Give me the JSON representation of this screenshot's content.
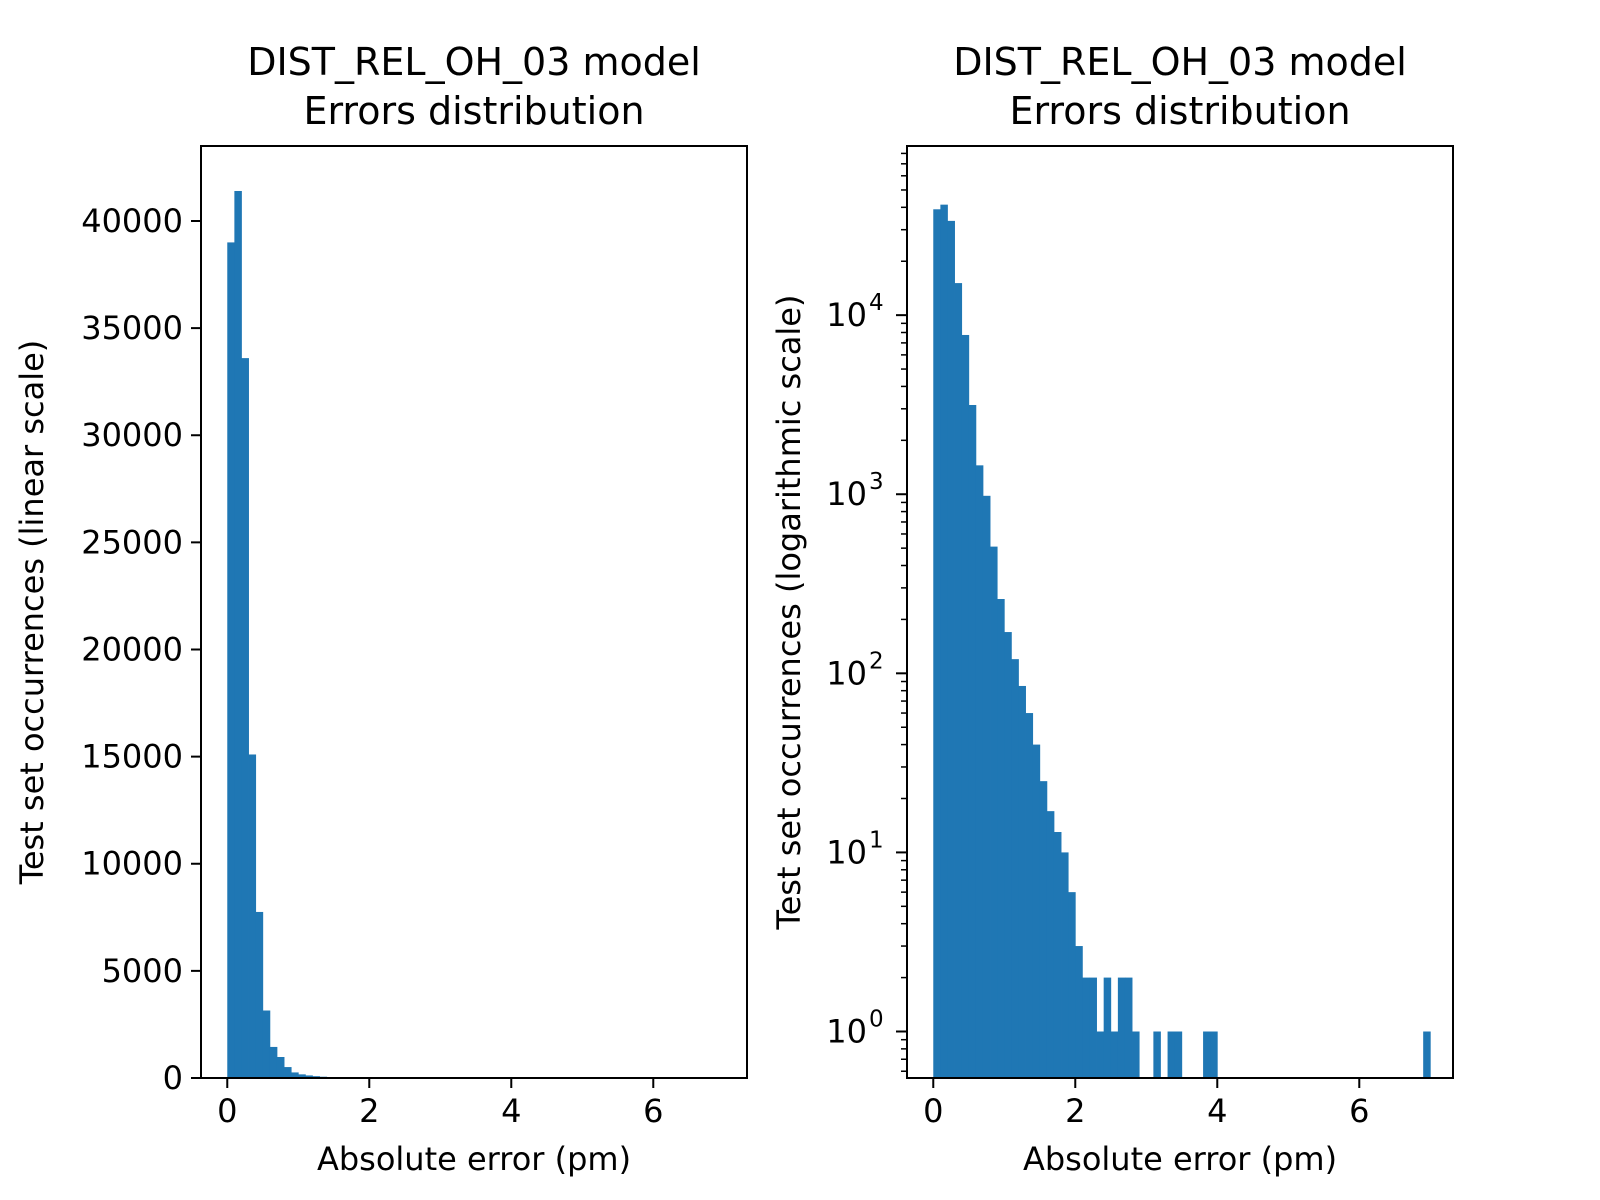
{
  "colors": {
    "bar": "#1f77b4",
    "axis": "#000000",
    "background": "#ffffff"
  },
  "chart_data": [
    {
      "type": "bar",
      "title_line1": "DIST_REL_OH_03 model",
      "title_line2": "Errors distribution",
      "xlabel": "Absolute error (pm)",
      "ylabel": "Test set occurrences (linear scale)",
      "yscale": "linear",
      "xlim": [
        -0.37,
        7.32
      ],
      "ylim": [
        0,
        43500
      ],
      "bin_width": 0.1,
      "bin_start": 0.0,
      "values": [
        39000,
        41400,
        33600,
        15100,
        7750,
        3150,
        1450,
        980,
        510,
        260,
        170,
        120,
        85,
        60,
        40,
        25,
        17,
        13,
        10,
        6,
        3,
        2,
        2,
        1,
        2,
        1,
        2,
        2,
        1,
        0,
        0,
        1,
        0,
        1,
        1,
        0,
        0,
        0,
        1,
        1,
        0,
        0,
        0,
        0,
        0,
        0,
        0,
        0,
        0,
        0,
        0,
        0,
        0,
        0,
        0,
        0,
        0,
        0,
        0,
        0,
        0,
        0,
        0,
        0,
        0,
        0,
        0,
        0,
        0,
        1
      ],
      "xticks": [
        0,
        2,
        4,
        6
      ],
      "xtick_labels": [
        "0",
        "2",
        "4",
        "6"
      ],
      "yticks": [
        0,
        5000,
        10000,
        15000,
        20000,
        25000,
        30000,
        35000,
        40000
      ],
      "ytick_labels": [
        "0",
        "5000",
        "10000",
        "15000",
        "20000",
        "25000",
        "30000",
        "35000",
        "40000"
      ]
    },
    {
      "type": "bar",
      "title_line1": "DIST_REL_OH_03 model",
      "title_line2": "Errors distribution",
      "xlabel": "Absolute error (pm)",
      "ylabel": "Test set occurrences (logarithmic scale)",
      "yscale": "log",
      "xlim": [
        -0.37,
        7.32
      ],
      "ylim": [
        0.55,
        88000
      ],
      "bin_width": 0.1,
      "bin_start": 0.0,
      "values": [
        39000,
        41400,
        33600,
        15100,
        7750,
        3150,
        1450,
        980,
        510,
        260,
        170,
        120,
        85,
        60,
        40,
        25,
        17,
        13,
        10,
        6,
        3,
        2,
        2,
        1,
        2,
        1,
        2,
        2,
        1,
        0,
        0,
        1,
        0,
        1,
        1,
        0,
        0,
        0,
        1,
        1,
        0,
        0,
        0,
        0,
        0,
        0,
        0,
        0,
        0,
        0,
        0,
        0,
        0,
        0,
        0,
        0,
        0,
        0,
        0,
        0,
        0,
        0,
        0,
        0,
        0,
        0,
        0,
        0,
        0,
        1
      ],
      "xticks": [
        0,
        2,
        4,
        6
      ],
      "xtick_labels": [
        "0",
        "2",
        "4",
        "6"
      ],
      "yticks": [
        1,
        10,
        100,
        1000,
        10000
      ],
      "ytick_base": "10",
      "ytick_exponents": [
        "0",
        "1",
        "2",
        "3",
        "4"
      ]
    }
  ]
}
